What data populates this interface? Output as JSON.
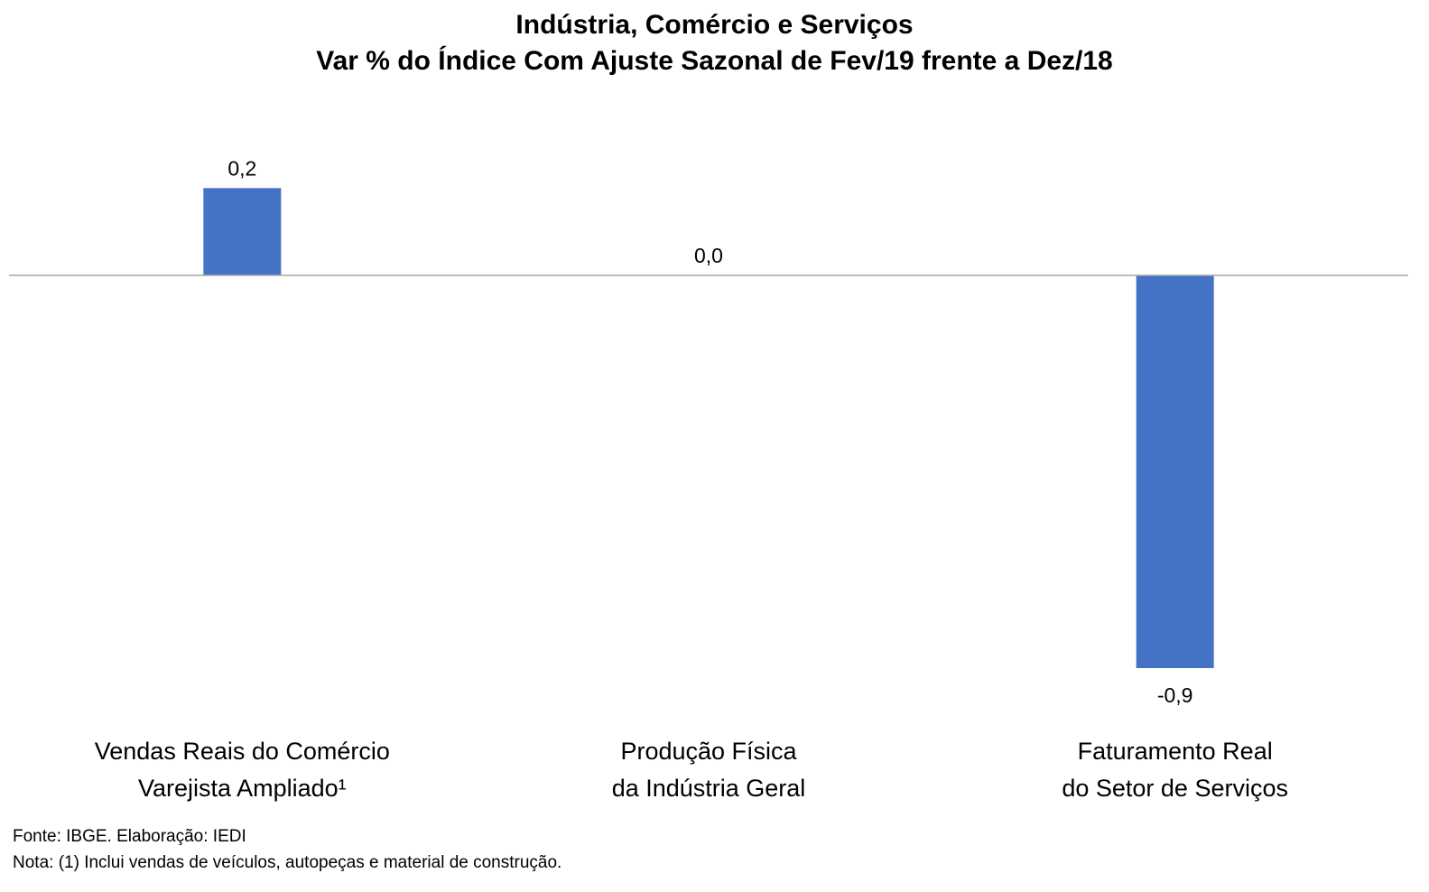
{
  "chart_data": {
    "type": "bar",
    "title": "Indústria, Comércio e Serviços",
    "subtitle": "Var % do Índice Com Ajuste Sazonal de Fev/19 frente a Dez/18",
    "categories": [
      [
        "Vendas Reais do Comércio",
        "Varejista Ampliado¹"
      ],
      [
        "Produção Física",
        "da Indústria Geral"
      ],
      [
        "Faturamento Real",
        "do Setor de Serviços"
      ]
    ],
    "values": [
      0.2,
      0.0,
      -0.9
    ],
    "data_labels": [
      "0,2",
      "0,0",
      "-0,9"
    ],
    "ylim": [
      -0.9,
      0.2
    ],
    "grid": false,
    "legend": "none",
    "bar_color": "#4472C4",
    "axis_color": "#A6A6A6"
  },
  "footer": {
    "source": "Fonte: IBGE. Elaboração: IEDI",
    "note": "Nota: (1) Inclui vendas de veículos, autopeças e material de construção."
  }
}
